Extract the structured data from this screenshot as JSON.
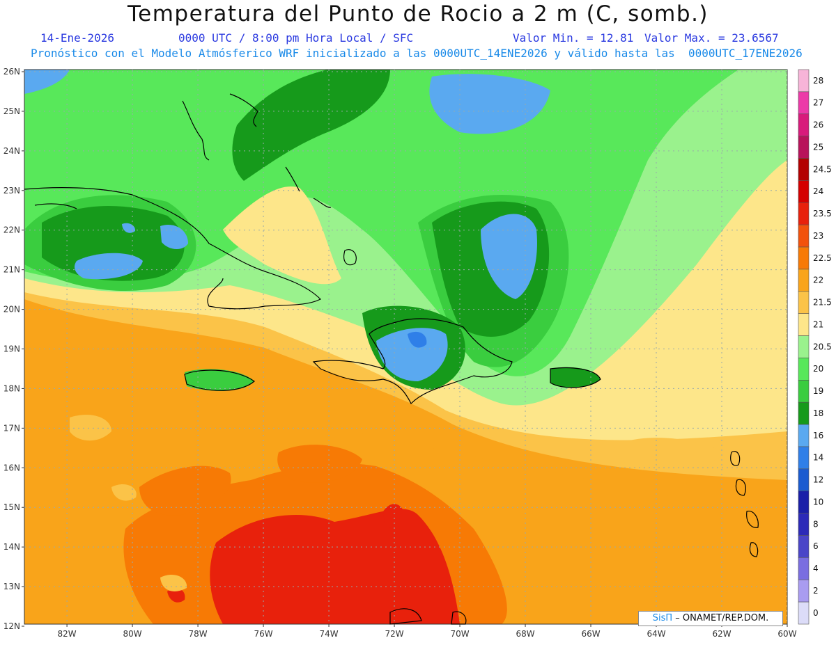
{
  "header": {
    "title": "Temperatura del Punto de Rocio a 2 m (C, somb.)",
    "date": "14-Ene-2026",
    "time": "0000 UTC / 8:00 pm Hora Local / SFC",
    "min_label": "Valor Min. = 12.81",
    "max_label": "Valor Max. = 23.6567",
    "description": "Pronóstico con el Modelo Atmósferico WRF inicializado a las 0000UTC_14ENE2026 y válido hasta las  0000UTC_17ENE2026"
  },
  "axes": {
    "lat_labels": [
      "26N",
      "25N",
      "24N",
      "23N",
      "22N",
      "21N",
      "20N",
      "19N",
      "18N",
      "17N",
      "16N",
      "15N",
      "14N",
      "13N",
      "12N"
    ],
    "lon_labels": [
      "82W",
      "80W",
      "78W",
      "76W",
      "74W",
      "72W",
      "70W",
      "68W",
      "66W",
      "64W",
      "62W",
      "60W"
    ]
  },
  "colorbar": {
    "labels": [
      "28",
      "27",
      "26",
      "25",
      "24.5",
      "24",
      "23.5",
      "23",
      "22.5",
      "22",
      "21.5",
      "21",
      "20.5",
      "20",
      "19",
      "18",
      "16",
      "14",
      "12",
      "10",
      "8",
      "6",
      "4",
      "2",
      "0"
    ],
    "colors": [
      "#f7b4d8",
      "#ec3aa8",
      "#d81b7b",
      "#b8135a",
      "#b30000",
      "#d40000",
      "#e8210c",
      "#f2520c",
      "#f77a05",
      "#f9a41a",
      "#fbc348",
      "#fde68a",
      "#9af28d",
      "#58e85a",
      "#3acd3f",
      "#169a1b",
      "#5aa9f0",
      "#2f7fe8",
      "#1a5bd0",
      "#1a1fa8",
      "#2c2ab8",
      "#4a45c8",
      "#7a6ee0",
      "#a99cf0",
      "#dcdcf8"
    ]
  },
  "credit": {
    "brand": "SisΠ",
    "org": "– ONAMET/REP.DOM."
  }
}
